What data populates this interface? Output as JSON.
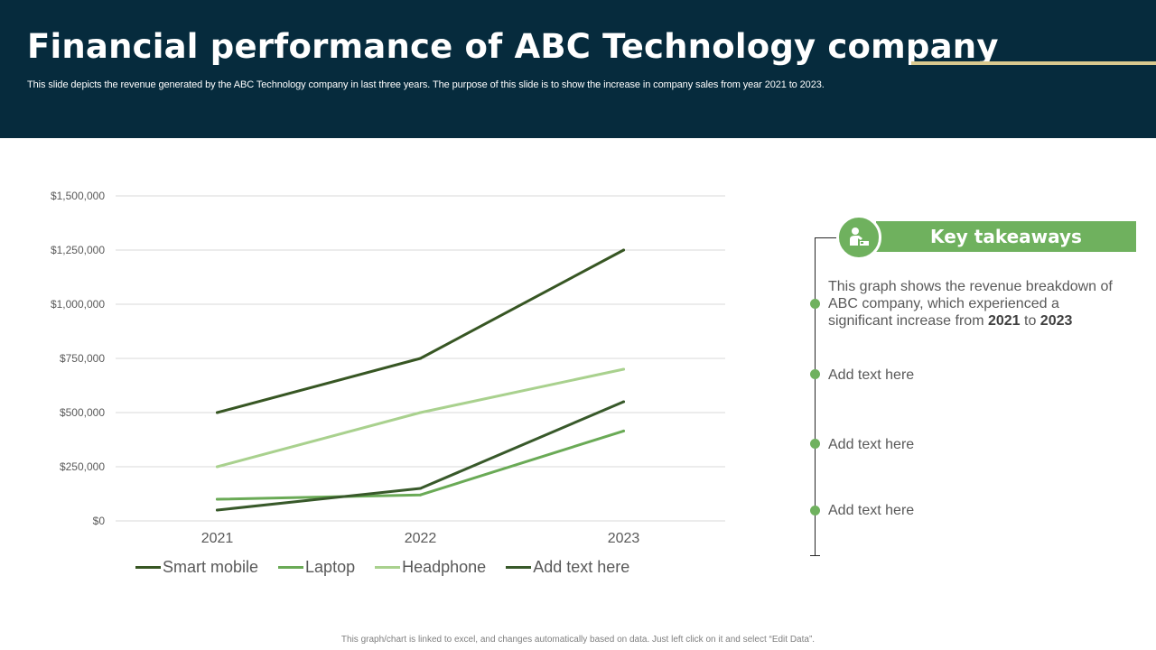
{
  "slide": {
    "title": "Financial performance of ABC Technology company",
    "subtitle": "This slide depicts the revenue generated by the ABC Technology company in last three years. The purpose of this slide is to show the increase in company sales from year 2021 to 2023.",
    "footer": "This graph/chart is linked to excel, and changes automatically based on data. Just left click on it and select “Edit Data”."
  },
  "colors": {
    "header_bg": "#062b3d",
    "accent_gold": "#d9c98f",
    "accent_green": "#6fb15e"
  },
  "takeaways": {
    "heading": "Key takeaways",
    "icon": "person-presentation-icon",
    "first": {
      "text_before": "This graph shows the revenue breakdown of ABC company, which experienced a significant increase from ",
      "year_from": "2021",
      "joiner": " to ",
      "year_to": "2023"
    },
    "items": [
      "Add text here",
      "Add text here",
      "Add text here"
    ]
  },
  "chart_data": {
    "type": "line",
    "title": "",
    "xlabel": "",
    "ylabel": "",
    "categories": [
      "2021",
      "2022",
      "2023"
    ],
    "ylim": [
      0,
      1500000
    ],
    "yticks": [
      0,
      250000,
      500000,
      750000,
      1000000,
      1250000,
      1500000
    ],
    "ytick_labels": [
      "$0",
      "$250,000",
      "$500,000",
      "$750,000",
      "$1,000,000",
      "$1,250,000",
      "$1,500,000"
    ],
    "grid": true,
    "legend_position": "bottom",
    "series": [
      {
        "name": "Smart mobile",
        "color": "#375623",
        "values": [
          500000,
          750000,
          1250000
        ]
      },
      {
        "name": "Laptop",
        "color": "#6aaa56",
        "values": [
          100000,
          120000,
          415000
        ]
      },
      {
        "name": "Headphone",
        "color": "#a9d18e",
        "values": [
          250000,
          500000,
          700000
        ]
      },
      {
        "name": "Add text here",
        "color": "#38592a",
        "values": [
          50000,
          150000,
          550000
        ]
      }
    ]
  }
}
